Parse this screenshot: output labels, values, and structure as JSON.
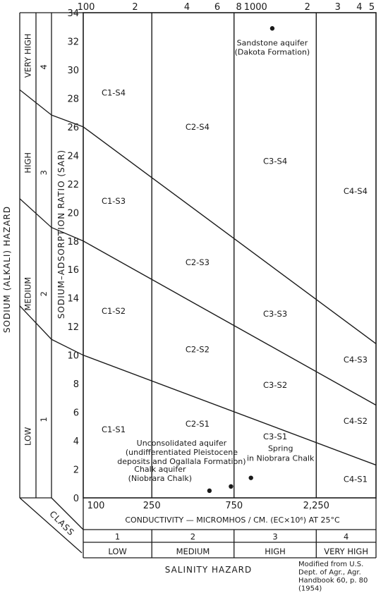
{
  "chart_data": {
    "type": "scatter",
    "title": "",
    "x_axis": {
      "label": "CONDUCTIVITY — MICROMHOS / CM.   (EC×10⁶) AT 25°C",
      "scale": "log",
      "range": [
        100,
        5000
      ],
      "top_tick_labels": [
        "100",
        "2",
        "4",
        "6",
        "8",
        "1000",
        "2",
        "3",
        "4",
        "5"
      ],
      "top_tick_values": [
        100,
        200,
        400,
        600,
        800,
        1000,
        2000,
        3000,
        4000,
        5000
      ],
      "bottom_tick_labels": [
        "100",
        "250",
        "750",
        "2,250"
      ],
      "bottom_tick_values": [
        100,
        250,
        750,
        2250
      ]
    },
    "y_axis": {
      "label": "SODIUM–ADSORPTION RATIO  (SAR)",
      "range": [
        0,
        34
      ],
      "ticks": [
        0,
        2,
        4,
        6,
        8,
        10,
        12,
        14,
        16,
        18,
        20,
        22,
        24,
        26,
        28,
        30,
        32,
        34
      ]
    },
    "salinity_hazard": {
      "title": "SALINITY HAZARD",
      "class_label": "CLASS",
      "classes": [
        {
          "number": "1",
          "name": "LOW",
          "from": 100,
          "to": 250
        },
        {
          "number": "2",
          "name": "MEDIUM",
          "from": 250,
          "to": 750
        },
        {
          "number": "3",
          "name": "HIGH",
          "from": 750,
          "to": 2250
        },
        {
          "number": "4",
          "name": "VERY HIGH",
          "from": 2250,
          "to": 5000
        }
      ]
    },
    "sodium_hazard": {
      "title": "SODIUM (ALKALI) HAZARD",
      "classes": [
        {
          "number": "1",
          "name": "LOW"
        },
        {
          "number": "2",
          "name": "MEDIUM"
        },
        {
          "number": "3",
          "name": "HIGH"
        },
        {
          "number": "4",
          "name": "VERY HIGH"
        }
      ]
    },
    "boundary_lines": [
      {
        "name": "S1/S2",
        "points": [
          [
            100,
            10
          ],
          [
            5000,
            2.3
          ]
        ]
      },
      {
        "name": "S2/S3",
        "points": [
          [
            100,
            18
          ],
          [
            5000,
            6.5
          ]
        ]
      },
      {
        "name": "S3/S4",
        "points": [
          [
            100,
            26
          ],
          [
            5000,
            10.8
          ]
        ]
      }
    ],
    "regions": [
      {
        "label": "C1-S4",
        "x": 150,
        "y": 28.2
      },
      {
        "label": "C2-S4",
        "x": 460,
        "y": 25.8
      },
      {
        "label": "C3-S4",
        "x": 1300,
        "y": 23.4
      },
      {
        "label": "C4-S4",
        "x": 3800,
        "y": 21.3
      },
      {
        "label": "C1-S3",
        "x": 150,
        "y": 20.6
      },
      {
        "label": "C2-S3",
        "x": 460,
        "y": 16.3
      },
      {
        "label": "C3-S3",
        "x": 1300,
        "y": 12.7
      },
      {
        "label": "C4-S3",
        "x": 3800,
        "y": 9.5
      },
      {
        "label": "C1-S2",
        "x": 150,
        "y": 12.9
      },
      {
        "label": "C2-S2",
        "x": 460,
        "y": 10.2
      },
      {
        "label": "C3-S2",
        "x": 1300,
        "y": 7.7
      },
      {
        "label": "C4-S2",
        "x": 3800,
        "y": 5.2
      },
      {
        "label": "C1-S1",
        "x": 150,
        "y": 4.6
      },
      {
        "label": "C2-S1",
        "x": 460,
        "y": 5.0
      },
      {
        "label": "C3-S1",
        "x": 1300,
        "y": 4.1
      },
      {
        "label": "C4-S1",
        "x": 3800,
        "y": 1.1
      }
    ],
    "points": [
      {
        "name": "Sandstone aquifer",
        "x": 1250,
        "y": 32.9,
        "annotation": [
          "Sandstone aquifer",
          "(Dakota Formation)"
        ]
      },
      {
        "name": "Unconsolidated aquifer",
        "x": 720,
        "y": 0.8,
        "annotation": [
          "Unconsolidated aquifer",
          "(undifferentiated Pleistocene",
          "deposits and Ogallala Formation)"
        ]
      },
      {
        "name": "Chalk aquifer",
        "x": 540,
        "y": 0.5,
        "annotation": [
          "Chalk aquifer",
          "(Niobrara Chalk)"
        ]
      },
      {
        "name": "Spring in Niobrara Chalk",
        "x": 940,
        "y": 1.4,
        "annotation": [
          "Spring",
          "in Niobrara Chalk"
        ]
      }
    ],
    "source_note": [
      "Modified from U.S.",
      "Dept. of Agr., Agr.",
      "Handbook 60, p. 80",
      "(1954)"
    ]
  }
}
